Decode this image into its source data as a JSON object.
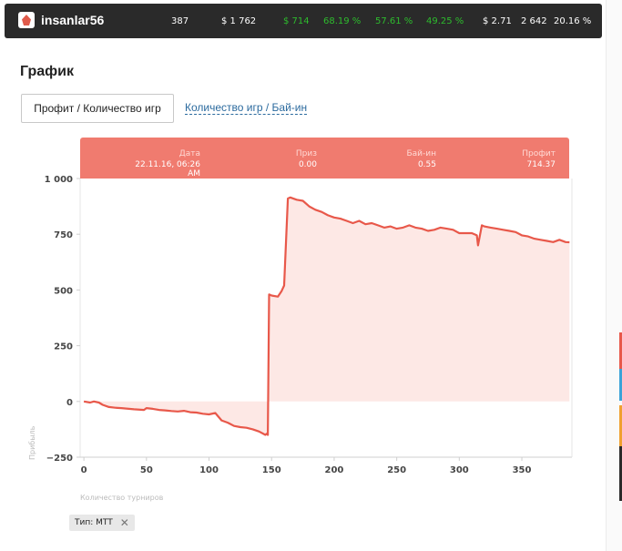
{
  "header": {
    "username": "insanlar56",
    "stats": [
      "387",
      "$ 1 762",
      "$ 714",
      "68.19 %",
      "57.61 %",
      "49.25 %",
      "$ 2.71",
      "2 642",
      "20.16 %"
    ],
    "stat_colors": [
      "#ffffff",
      "#ffffff",
      "#2dbb2d",
      "#2dbb2d",
      "#2dbb2d",
      "#2dbb2d",
      "#ffffff",
      "#ffffff",
      "#ffffff"
    ]
  },
  "page_title": "График",
  "tabs": {
    "active": "Профит / Количество игр",
    "other": "Количество игр / Бай-ин"
  },
  "tooltip": {
    "date_label": "Дата",
    "date_value": "22.11.16, 06:26 AM",
    "prize_label": "Приз",
    "prize_value": "0.00",
    "buyin_label": "Бай-ин",
    "buyin_value": "0.55",
    "profit_label": "Профит",
    "profit_value": "714.37"
  },
  "filter_chip": {
    "label": "Тип: MTT",
    "close": "✕"
  },
  "colors": {
    "accent": "#e8584a",
    "fill": "#fde8e5",
    "tooltip_bg": "#f07b6f"
  },
  "chart_data": {
    "type": "area",
    "xlabel": "Количество турниров",
    "ylabel": "Прибыль",
    "xlim": [
      -3,
      390
    ],
    "ylim": [
      -250,
      1000
    ],
    "x_ticks": [
      0,
      50,
      100,
      150,
      200,
      250,
      300,
      350
    ],
    "x_tick_labels": [
      "0",
      "50",
      "100",
      "150",
      "200",
      "250",
      "300",
      "350"
    ],
    "y_ticks": [
      -250,
      0,
      250,
      500,
      750,
      1000
    ],
    "y_tick_labels": [
      "−250",
      "0",
      "250",
      "500",
      "750",
      "1 000"
    ],
    "series": [
      {
        "x": [
          0,
          5,
          8,
          12,
          15,
          20,
          25,
          30,
          40,
          48,
          50,
          55,
          60,
          65,
          70,
          75,
          80,
          85,
          90,
          95,
          100,
          105,
          110,
          115,
          120,
          125,
          130,
          135,
          140,
          145,
          146,
          147,
          148,
          150,
          155,
          158,
          160,
          163,
          165,
          170,
          175,
          180,
          185,
          190,
          195,
          200,
          205,
          210,
          215,
          220,
          225,
          230,
          235,
          240,
          245,
          250,
          255,
          260,
          265,
          270,
          275,
          280,
          285,
          290,
          295,
          300,
          305,
          310,
          314,
          315,
          318,
          320,
          325,
          330,
          335,
          340,
          345,
          350,
          355,
          360,
          365,
          370,
          375,
          380,
          385,
          388
        ],
        "y": [
          0,
          -5,
          0,
          -5,
          -15,
          -25,
          -28,
          -30,
          -35,
          -38,
          -30,
          -33,
          -38,
          -40,
          -43,
          -45,
          -42,
          -48,
          -50,
          -55,
          -58,
          -52,
          -85,
          -95,
          -110,
          -115,
          -118,
          -125,
          -135,
          -150,
          -145,
          -150,
          480,
          475,
          470,
          495,
          520,
          910,
          915,
          905,
          900,
          875,
          860,
          850,
          835,
          825,
          820,
          810,
          800,
          810,
          795,
          800,
          790,
          780,
          785,
          775,
          780,
          790,
          780,
          775,
          765,
          770,
          780,
          775,
          770,
          755,
          755,
          755,
          745,
          700,
          790,
          785,
          780,
          775,
          770,
          765,
          760,
          745,
          740,
          730,
          725,
          720,
          715,
          725,
          715,
          714
        ]
      }
    ]
  }
}
